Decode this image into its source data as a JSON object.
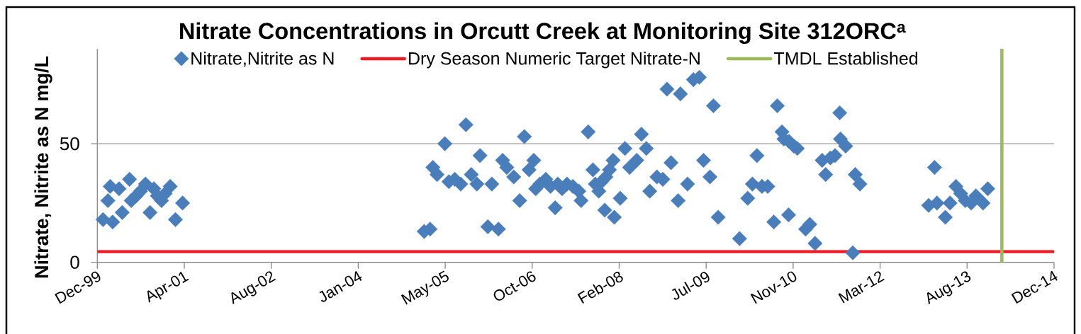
{
  "chart_data": {
    "type": "scatter",
    "title": "Nitrate Concentrations in Orcutt Creek at Monitoring Site 312ORC$^{a}$",
    "ylabel": "Nitrate, Nitrite as N mg/L",
    "series": [
      {
        "name": "Nitrate,Nitrite as N",
        "color": "#4a7ebb",
        "x": [
          "2000-01-03",
          "2000-01-31",
          "2000-02-13",
          "2000-02-27",
          "2000-04-04",
          "2000-04-22",
          "2000-06-03",
          "2000-06-13",
          "2000-07-11",
          "2000-08-05",
          "2000-09-03",
          "2000-09-29",
          "2000-10-21",
          "2000-11-10",
          "2000-12-04",
          "2000-12-25",
          "2001-01-23",
          "2001-02-22",
          "2001-04-04",
          "2005-01-22",
          "2005-02-25",
          "2005-03-13",
          "2005-04-06",
          "2005-05-21",
          "2005-06-13",
          "2005-07-17",
          "2005-08-20",
          "2005-09-19",
          "2005-10-20",
          "2005-11-21",
          "2005-12-09",
          "2006-01-23",
          "2006-02-15",
          "2006-03-25",
          "2006-04-18",
          "2006-05-12",
          "2006-06-21",
          "2006-07-25",
          "2006-08-21",
          "2006-09-17",
          "2006-10-14",
          "2006-10-25",
          "2006-11-18",
          "2006-12-22",
          "2007-01-18",
          "2007-02-14",
          "2007-03-01",
          "2007-03-26",
          "2007-04-23",
          "2007-05-27",
          "2007-06-30",
          "2007-07-13",
          "2007-08-23",
          "2007-09-19",
          "2007-10-03",
          "2007-10-23",
          "2007-11-08",
          "2007-11-26",
          "2007-12-03",
          "2007-12-23",
          "2008-01-13",
          "2008-01-20",
          "2008-02-23",
          "2008-03-21",
          "2008-04-17",
          "2008-05-28",
          "2008-06-24",
          "2008-07-22",
          "2008-08-11",
          "2008-09-21",
          "2008-10-25",
          "2008-11-18",
          "2008-12-11",
          "2009-01-21",
          "2009-02-03",
          "2009-03-16",
          "2009-04-19",
          "2009-05-23",
          "2009-06-16",
          "2009-07-23",
          "2009-08-12",
          "2009-09-08",
          "2010-01-09",
          "2010-02-25",
          "2010-03-24",
          "2010-04-19",
          "2010-05-18",
          "2010-06-20",
          "2010-07-25",
          "2010-08-14",
          "2010-09-10",
          "2010-09-21",
          "2010-10-18",
          "2010-10-20",
          "2010-11-17",
          "2010-12-07",
          "2011-01-24",
          "2011-02-17",
          "2011-03-19",
          "2011-04-29",
          "2011-05-19",
          "2011-06-15",
          "2011-07-12",
          "2011-08-08",
          "2011-08-12",
          "2011-09-11",
          "2011-10-22",
          "2011-11-05",
          "2011-12-02",
          "2012-12-31",
          "2013-02-03",
          "2013-02-17",
          "2013-04-06",
          "2013-05-03",
          "2013-06-06",
          "2013-07-03",
          "2013-07-30",
          "2013-09-02",
          "2013-09-29",
          "2013-11-09",
          "2013-12-06"
        ],
        "values": [
          18,
          26,
          32,
          17,
          31,
          21,
          35,
          26,
          28,
          30,
          33,
          21,
          31,
          28,
          26,
          29,
          32,
          18,
          25,
          13,
          14,
          40,
          37,
          50,
          34,
          35,
          33,
          58,
          37,
          33,
          45,
          15,
          33,
          14,
          43,
          40,
          36,
          26,
          53,
          39,
          43,
          31,
          33,
          35,
          32,
          23,
          33,
          31,
          33,
          32,
          30,
          26,
          55,
          39,
          33,
          30,
          34,
          22,
          36,
          39,
          43,
          19,
          27,
          48,
          40,
          43,
          54,
          48,
          30,
          36,
          35,
          73,
          42,
          26,
          71,
          33,
          77,
          78,
          43,
          36,
          66,
          19,
          10,
          27,
          33,
          45,
          32,
          32,
          17,
          66,
          55,
          52,
          20,
          51,
          49,
          48,
          14,
          16,
          8,
          43,
          37,
          44,
          45,
          63,
          52,
          49,
          4,
          37,
          33,
          24,
          40,
          25,
          19,
          25,
          32,
          29,
          26,
          25,
          28,
          25,
          31
        ]
      },
      {
        "name": "TMDL Established",
        "type": "line",
        "color": "#9bbb59",
        "marker": "none",
        "x": [
          "2014-02-25",
          "2014-02-25"
        ],
        "values": [
          0,
          90
        ]
      }
    ],
    "marker": "diamond",
    "xlim": [
      "1999-12-01",
      "2014-12-22"
    ],
    "xticks": [
      {
        "value": "1999-12-01",
        "label": "Dec-99"
      },
      {
        "value": "2001-04-14",
        "label": "Apr-01"
      },
      {
        "value": "2002-08-27",
        "label": "Aug-02"
      },
      {
        "value": "2004-01-09",
        "label": "Jan-04"
      },
      {
        "value": "2005-05-23",
        "label": "May-05"
      },
      {
        "value": "2006-10-05",
        "label": "Oct-06"
      },
      {
        "value": "2008-02-17",
        "label": "Feb-08"
      },
      {
        "value": "2009-07-01",
        "label": "Jul-09"
      },
      {
        "value": "2010-11-13",
        "label": "Nov-10"
      },
      {
        "value": "2012-03-27",
        "label": "Mar-12"
      },
      {
        "value": "2013-08-09",
        "label": "Aug-13"
      },
      {
        "value": "2014-12-22",
        "label": "Dec-14"
      }
    ],
    "ylim": [
      0,
      90
    ],
    "yticks": [
      0,
      50
    ],
    "grid": "y",
    "legend": "top",
    "ref_lines": [
      {
        "axis": "y",
        "value": 4.5,
        "label": "Dry Season Numeric Target Nitrate-N",
        "color": "#ed1c24"
      }
    ]
  }
}
